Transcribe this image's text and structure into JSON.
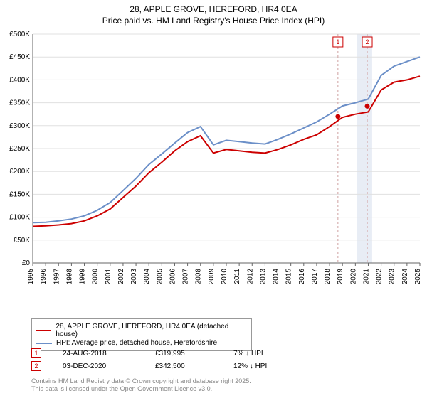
{
  "title_line1": "28, APPLE GROVE, HEREFORD, HR4 0EA",
  "title_line2": "Price paid vs. HM Land Registry's House Price Index (HPI)",
  "chart": {
    "type": "line",
    "background_color": "#ffffff",
    "plot_bg": "#ffffff",
    "grid_color": "#e0e0e0",
    "axis_color": "#666666",
    "tick_font_size": 10,
    "tick_color": "#000000",
    "x_years": [
      1995,
      1996,
      1997,
      1998,
      1999,
      2000,
      2001,
      2002,
      2003,
      2004,
      2005,
      2006,
      2007,
      2008,
      2009,
      2010,
      2011,
      2012,
      2013,
      2014,
      2015,
      2016,
      2017,
      2018,
      2019,
      2020,
      2021,
      2022,
      2023,
      2024,
      2025
    ],
    "ylim": [
      0,
      500000
    ],
    "ytick_step": 50000,
    "yticks": [
      "£0",
      "£50K",
      "£100K",
      "£150K",
      "£200K",
      "£250K",
      "£300K",
      "£350K",
      "£400K",
      "£450K",
      "£500K"
    ],
    "series": [
      {
        "name": "price_paid",
        "label": "28, APPLE GROVE, HEREFORD, HR4 0EA (detached house)",
        "color": "#cc0000",
        "width": 2,
        "values": [
          80,
          81,
          83,
          86,
          92,
          103,
          118,
          143,
          168,
          197,
          220,
          245,
          265,
          278,
          240,
          248,
          245,
          242,
          240,
          248,
          258,
          270,
          280,
          298,
          318,
          325,
          330,
          378,
          395,
          400,
          408
        ]
      },
      {
        "name": "hpi",
        "label": "HPI: Average price, detached house, Herefordshire",
        "color": "#6b8fc8",
        "width": 2,
        "values": [
          88,
          89,
          92,
          96,
          103,
          115,
          132,
          158,
          185,
          215,
          238,
          262,
          285,
          298,
          258,
          268,
          265,
          262,
          260,
          270,
          282,
          295,
          308,
          325,
          343,
          350,
          358,
          410,
          430,
          440,
          450
        ]
      }
    ],
    "sale_markers": [
      {
        "num": "1",
        "year": 2018.65,
        "price": 319995,
        "date": "24-AUG-2018",
        "price_label": "£319,995",
        "pct_label": "7% ↓ HPI"
      },
      {
        "num": "2",
        "year": 2020.92,
        "price": 342500,
        "date": "03-DEC-2020",
        "price_label": "£342,500",
        "pct_label": "12% ↓ HPI"
      }
    ],
    "marker_line_color": "#d0a0a0",
    "marker_box_border": "#cc0000",
    "shade_band": {
      "from_year": 2020.1,
      "to_year": 2021.3,
      "color": "#e8edf5"
    }
  },
  "footer_line1": "Contains HM Land Registry data © Crown copyright and database right 2025.",
  "footer_line2": "This data is licensed under the Open Government Licence v3.0."
}
